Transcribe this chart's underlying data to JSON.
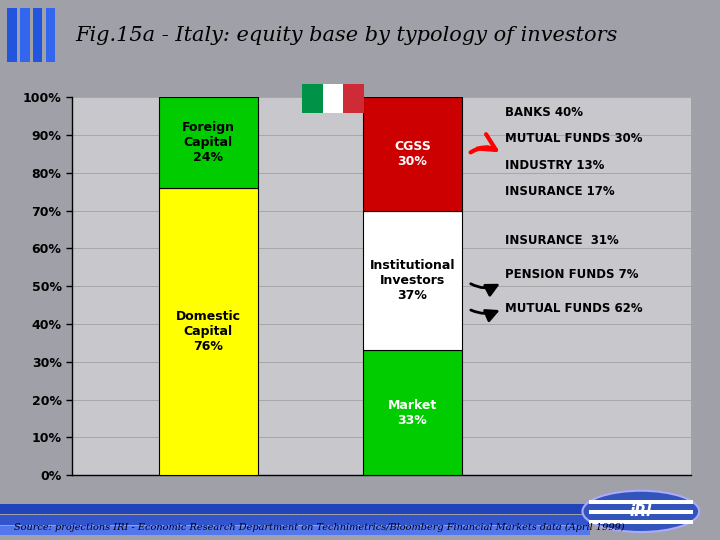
{
  "title": "Fig.15a - Italy: equity base by typology of investors",
  "bg_color": "#a0a0a8",
  "title_bg": "#c8c8cc",
  "chart_bg": "#c8c8cc",
  "source_text": "Source: projections IRI - Economic Research Department on Technimetrics/Bloomberg Financial Markets data (April 1999)",
  "bar1_segments": [
    {
      "label": "Domestic\nCapital\n76%",
      "value": 76,
      "color": "#ffff00",
      "text_color": "#000000"
    },
    {
      "label": "Foreign\nCapital\n24%",
      "value": 24,
      "color": "#00cc00",
      "text_color": "#000000"
    }
  ],
  "bar2_segments": [
    {
      "label": "Market\n33%",
      "value": 33,
      "color": "#00cc00",
      "text_color": "#ffffff"
    },
    {
      "label": "Institutional\nInvestors\n37%",
      "value": 37,
      "color": "#ffffff",
      "text_color": "#000000"
    },
    {
      "label": "CGSS\n30%",
      "value": 30,
      "color": "#cc0000",
      "text_color": "#ffffff"
    }
  ],
  "annotations_top": [
    "BANKS 40%",
    "MUTUAL FUNDS 30%",
    "INDUSTRY 13%",
    "INSURANCE 17%"
  ],
  "annotations_bottom": [
    "INSURANCE  31%",
    "PENSION FUNDS 7%",
    "MUTUAL FUNDS 62%"
  ],
  "yticks": [
    0,
    10,
    20,
    30,
    40,
    50,
    60,
    70,
    80,
    90,
    100
  ],
  "blue_stripe_color": "#3366ff",
  "blue_stripe_color2": "#5588ff"
}
